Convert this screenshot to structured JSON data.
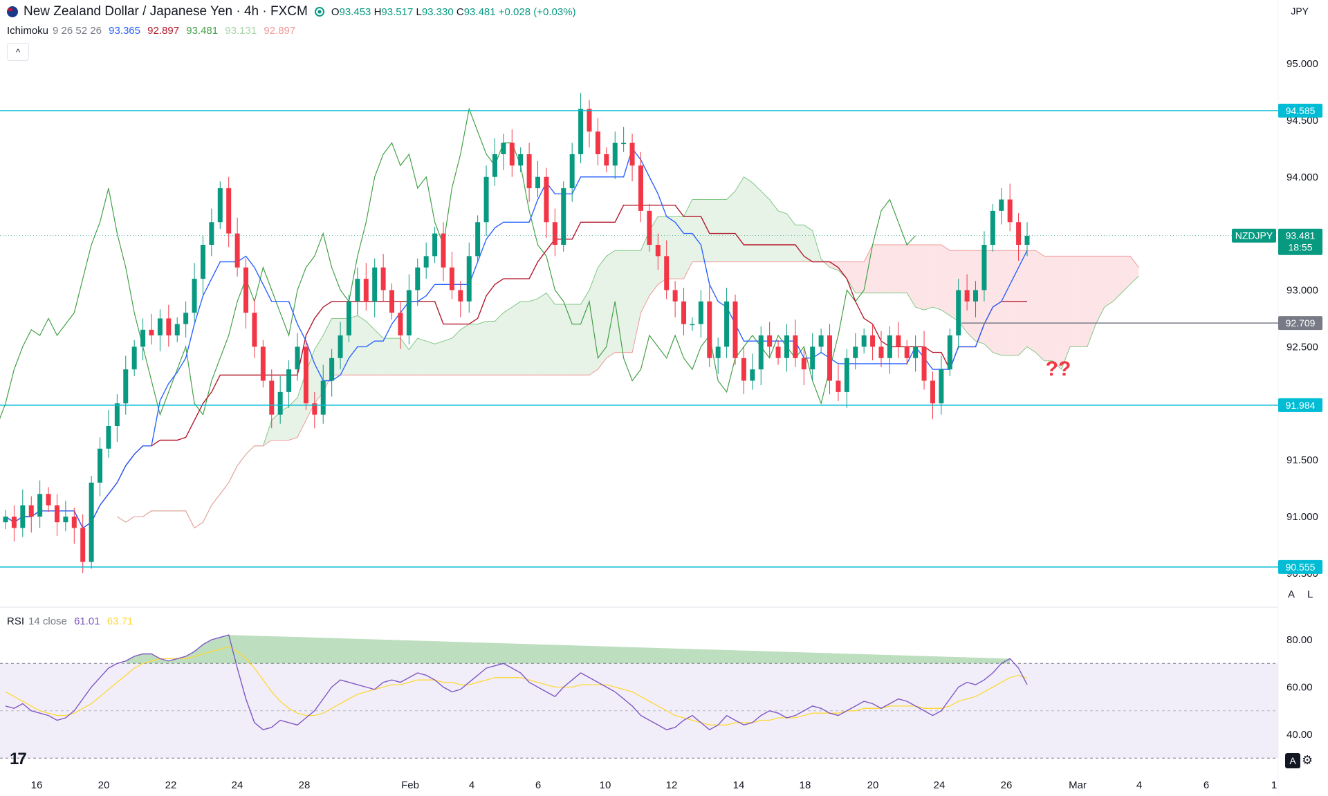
{
  "header": {
    "symbol_title": "New Zealand Dollar / Japanese Yen · 4h · FXCM",
    "o_label": "O",
    "o": "93.453",
    "h_label": "H",
    "h": "93.517",
    "l_label": "L",
    "l": "93.330",
    "c_label": "C",
    "c": "93.481",
    "change": "+0.028 (+0.03%)",
    "currency": "JPY"
  },
  "ichimoku": {
    "name": "Ichimoku",
    "params": "9 26 52 26",
    "v1": "93.365",
    "v2": "92.897",
    "v3": "93.481",
    "v4": "93.131",
    "v5": "92.897"
  },
  "rsi": {
    "name": "RSI",
    "params": "14 close",
    "value": "61.01",
    "ma": "63.71"
  },
  "annotation": "??",
  "colors": {
    "up": "#089981",
    "down": "#f23645",
    "tenkan": "#2962ff",
    "kijun": "#b2182b",
    "chikou": "#43a047",
    "level": "#00bcd4",
    "rsi": "#7e57c2",
    "rsi_ma": "#fdd835"
  },
  "chart_data": [
    {
      "type": "candlestick",
      "title": "New Zealand Dollar / Japanese Yen · 4h · FXCM",
      "ylim": [
        90.3,
        95.3
      ],
      "y_ticks": [
        "95.000",
        "94.500",
        "94.000",
        "93.000",
        "92.500",
        "91.500",
        "91.000",
        "90.500"
      ],
      "x_ticks": [
        "16",
        "20",
        "22",
        "24",
        "28",
        "Feb",
        "4",
        "6",
        "10",
        "12",
        "14",
        "18",
        "20",
        "24",
        "26",
        "Mar",
        "4",
        "6",
        "1"
      ],
      "horizontal_levels": [
        {
          "value": 94.585,
          "label": "94.585"
        },
        {
          "value": 91.984,
          "label": "91.984"
        },
        {
          "value": 90.555,
          "label": "90.555"
        },
        {
          "value": 92.709,
          "label": "92.709"
        }
      ],
      "last_price": {
        "symbol": "NZDJPY",
        "value": "93.481",
        "countdown": "18:55"
      },
      "closes": [
        91.0,
        90.9,
        91.1,
        91.0,
        91.2,
        91.1,
        90.95,
        91.0,
        90.9,
        90.6,
        91.3,
        91.6,
        91.8,
        92.0,
        92.3,
        92.5,
        92.65,
        92.6,
        92.75,
        92.6,
        92.7,
        92.8,
        93.1,
        93.4,
        93.6,
        93.9,
        93.5,
        93.2,
        92.8,
        92.5,
        92.2,
        91.9,
        92.1,
        92.3,
        92.5,
        92.0,
        91.9,
        92.2,
        92.4,
        92.6,
        92.9,
        93.1,
        92.9,
        93.2,
        93.0,
        92.8,
        92.6,
        93.0,
        93.2,
        93.3,
        93.5,
        93.2,
        93.0,
        92.9,
        93.3,
        93.6,
        94.0,
        94.2,
        94.3,
        94.1,
        94.2,
        93.9,
        94.0,
        93.6,
        93.4,
        93.9,
        94.2,
        94.6,
        94.4,
        94.2,
        94.1,
        94.3,
        94.3,
        94.1,
        93.7,
        93.4,
        93.3,
        93.0,
        92.9,
        92.7,
        92.7,
        92.9,
        92.4,
        92.5,
        92.9,
        92.4,
        92.2,
        92.3,
        92.6,
        92.5,
        92.4,
        92.6,
        92.4,
        92.3,
        92.5,
        92.6,
        92.2,
        92.1,
        92.4,
        92.5,
        92.6,
        92.5,
        92.4,
        92.6,
        92.5,
        92.4,
        92.5,
        92.2,
        92.0,
        92.3,
        92.6,
        93.0,
        92.9,
        93.0,
        93.4,
        93.7,
        93.8,
        93.6,
        93.4,
        93.48
      ],
      "rsi_ylim": [
        30,
        90
      ],
      "rsi_ticks": [
        "80.00",
        "60.00",
        "40.00"
      ],
      "rsi_band": [
        70,
        30
      ],
      "rsi_values": [
        52,
        51,
        53,
        50,
        49,
        48,
        46,
        47,
        50,
        55,
        60,
        64,
        68,
        70,
        71,
        73,
        74,
        74,
        72,
        71,
        72,
        73,
        75,
        78,
        80,
        81,
        82,
        68,
        55,
        45,
        42,
        43,
        46,
        45,
        44,
        47,
        50,
        55,
        60,
        63,
        62,
        61,
        60,
        59,
        62,
        63,
        62,
        64,
        66,
        65,
        63,
        60,
        58,
        59,
        62,
        65,
        68,
        69,
        70,
        68,
        66,
        62,
        60,
        58,
        56,
        60,
        63,
        66,
        64,
        62,
        60,
        58,
        55,
        52,
        48,
        46,
        44,
        42,
        43,
        46,
        48,
        45,
        42,
        44,
        48,
        46,
        44,
        45,
        48,
        50,
        49,
        47,
        48,
        50,
        52,
        51,
        49,
        48,
        50,
        52,
        54,
        53,
        51,
        53,
        55,
        54,
        52,
        50,
        48,
        50,
        55,
        60,
        62,
        61,
        63,
        66,
        70,
        72,
        68,
        61
      ],
      "rsi_ma_values": [
        58,
        56,
        54,
        52,
        50,
        49,
        48,
        48,
        49,
        51,
        53,
        56,
        59,
        62,
        65,
        68,
        70,
        71,
        72,
        72,
        72,
        72,
        73,
        74,
        75,
        76,
        77,
        75,
        72,
        68,
        63,
        58,
        54,
        51,
        49,
        48,
        48,
        49,
        51,
        53,
        55,
        57,
        58,
        59,
        60,
        61,
        61,
        62,
        63,
        63,
        63,
        62,
        62,
        61,
        61,
        62,
        63,
        64,
        64,
        64,
        64,
        63,
        62,
        61,
        60,
        60,
        60,
        61,
        61,
        61,
        61,
        60,
        59,
        58,
        56,
        54,
        52,
        50,
        48,
        47,
        46,
        45,
        44,
        44,
        44,
        45,
        45,
        45,
        46,
        46,
        47,
        47,
        47,
        48,
        49,
        49,
        49,
        49,
        50,
        50,
        51,
        51,
        51,
        52,
        52,
        52,
        52,
        51,
        51,
        51,
        52,
        54,
        55,
        56,
        58,
        60,
        62,
        64,
        65,
        63.71
      ]
    }
  ]
}
